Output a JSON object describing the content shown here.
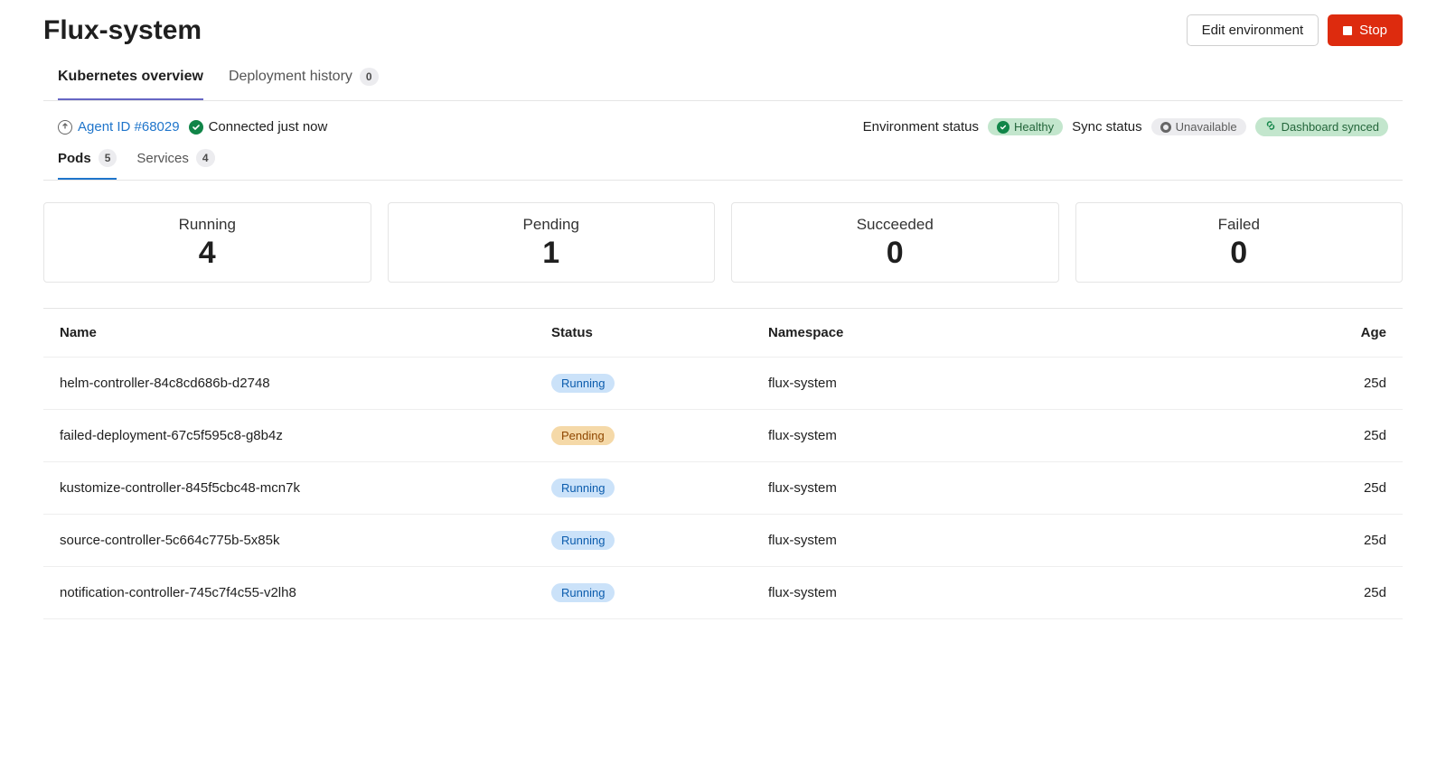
{
  "colors": {
    "accent_tab": "#6666c4",
    "accent_subtab": "#1f75cb",
    "danger": "#dd2b0e",
    "ok_green": "#108548",
    "pill_green_bg": "#c3e6cd",
    "pill_green_fg": "#24663b",
    "pill_gray_bg": "#ececef",
    "pill_gray_fg": "#5c5c5c",
    "badge_running_bg": "#cbe2f9",
    "badge_running_fg": "#0b5cad",
    "badge_pending_bg": "#f5d9a8",
    "badge_pending_fg": "#8f4700",
    "border": "#e5e5e5",
    "text": "#1f1f1f"
  },
  "header": {
    "title": "Flux-system",
    "edit_button": "Edit environment",
    "stop_button": "Stop"
  },
  "main_tabs": [
    {
      "label": "Kubernetes overview",
      "active": true
    },
    {
      "label": "Deployment history",
      "count": "0",
      "active": false
    }
  ],
  "agent": {
    "link_text": "Agent ID #68029",
    "connected_text": "Connected just now"
  },
  "env_status": {
    "label": "Environment status",
    "value": "Healthy"
  },
  "sync_status": {
    "label": "Sync status",
    "unavailable": "Unavailable",
    "dashboard": "Dashboard synced"
  },
  "sub_tabs": [
    {
      "label": "Pods",
      "count": "5",
      "active": true
    },
    {
      "label": "Services",
      "count": "4",
      "active": false
    }
  ],
  "summary_cards": [
    {
      "label": "Running",
      "value": "4"
    },
    {
      "label": "Pending",
      "value": "1"
    },
    {
      "label": "Succeeded",
      "value": "0"
    },
    {
      "label": "Failed",
      "value": "0"
    }
  ],
  "table": {
    "columns": [
      "Name",
      "Status",
      "Namespace",
      "Age"
    ],
    "rows": [
      {
        "name": "helm-controller-84c8cd686b-d2748",
        "status": "Running",
        "status_class": "running",
        "namespace": "flux-system",
        "age": "25d"
      },
      {
        "name": "failed-deployment-67c5f595c8-g8b4z",
        "status": "Pending",
        "status_class": "pending",
        "namespace": "flux-system",
        "age": "25d"
      },
      {
        "name": "kustomize-controller-845f5cbc48-mcn7k",
        "status": "Running",
        "status_class": "running",
        "namespace": "flux-system",
        "age": "25d"
      },
      {
        "name": "source-controller-5c664c775b-5x85k",
        "status": "Running",
        "status_class": "running",
        "namespace": "flux-system",
        "age": "25d"
      },
      {
        "name": "notification-controller-745c7f4c55-v2lh8",
        "status": "Running",
        "status_class": "running",
        "namespace": "flux-system",
        "age": "25d"
      }
    ]
  }
}
